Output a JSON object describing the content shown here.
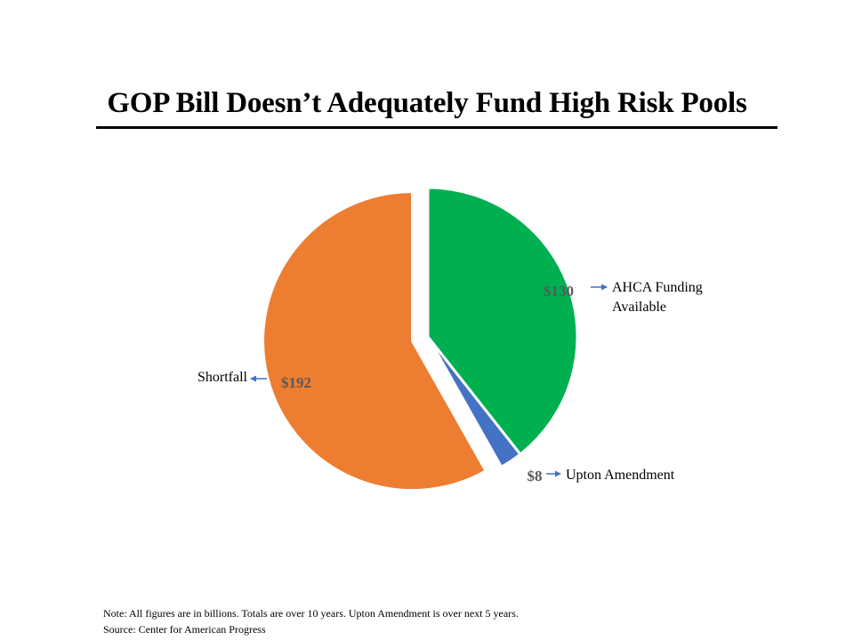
{
  "chart_data": {
    "type": "pie",
    "title": "GOP Bill Doesn’t Adequately Fund High Risk Pools",
    "slices": [
      {
        "label": "AHCA Funding Available",
        "label_lines": [
          "AHCA Funding",
          "Available"
        ],
        "value": 130,
        "value_label": "$130",
        "color": "#00B050",
        "exploded": false
      },
      {
        "label": "Upton Amendment",
        "label_lines": [
          "Upton Amendment"
        ],
        "value": 8,
        "value_label": "$8",
        "color": "#4472C4",
        "exploded": false
      },
      {
        "label": "Shortfall",
        "label_lines": [
          "Shortfall"
        ],
        "value": 192,
        "value_label": "$192",
        "color": "#ED7D31",
        "exploded": true
      }
    ],
    "legend": "none",
    "label_style": "data labels with arrows to category names"
  },
  "notes": {
    "line1": "Note: All figures are in billions.  Totals are over 10 years. Upton Amendment is over next 5 years.",
    "line2": "Source: Center for American Progress"
  },
  "colors": {
    "arrow": "#4472C4",
    "value_text": "#595959"
  }
}
